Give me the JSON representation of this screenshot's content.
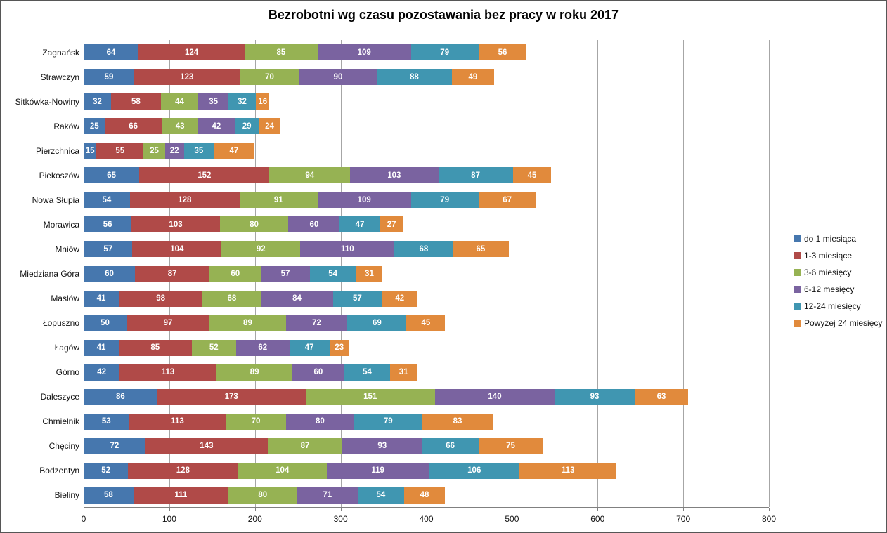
{
  "chart_data": {
    "type": "bar",
    "stacked": true,
    "orientation": "horizontal",
    "title": "Bezrobotni wg czasu pozostawania bez pracy w roku 2017",
    "xlabel": "",
    "ylabel": "",
    "xlim": [
      0,
      800
    ],
    "x_ticks": [
      0,
      100,
      200,
      300,
      400,
      500,
      600,
      700,
      800
    ],
    "grid": true,
    "legend_position": "right",
    "value_labels": "inside-white",
    "categories": [
      "Zagnańsk",
      "Strawczyn",
      "Sitkówka-Nowiny",
      "Raków",
      "Pierzchnica",
      "Piekoszów",
      "Nowa Słupia",
      "Morawica",
      "Mniów",
      "Miedziana Góra",
      "Masłów",
      "Łopuszno",
      "Łagów",
      "Górno",
      "Daleszyce",
      "Chmielnik",
      "Chęciny",
      "Bodzentyn",
      "Bieliny"
    ],
    "series": [
      {
        "name": "do 1 miesiąca",
        "color": "#4677AE",
        "values": [
          64,
          59,
          32,
          25,
          15,
          65,
          54,
          56,
          57,
          60,
          41,
          50,
          41,
          42,
          86,
          53,
          72,
          52,
          58
        ]
      },
      {
        "name": "1-3 miesiące",
        "color": "#B04A48",
        "values": [
          124,
          123,
          58,
          66,
          55,
          152,
          128,
          103,
          104,
          87,
          98,
          97,
          85,
          113,
          173,
          113,
          143,
          128,
          111
        ]
      },
      {
        "name": "3-6 miesięcy",
        "color": "#96B253",
        "values": [
          85,
          70,
          44,
          43,
          25,
          94,
          91,
          80,
          92,
          60,
          68,
          89,
          52,
          89,
          151,
          70,
          87,
          104,
          80
        ]
      },
      {
        "name": "6-12 mesięcy",
        "color": "#7A63A0",
        "values": [
          109,
          90,
          35,
          42,
          22,
          103,
          109,
          60,
          110,
          57,
          84,
          72,
          62,
          60,
          140,
          80,
          93,
          119,
          71
        ]
      },
      {
        "name": "12-24 miesięcy",
        "color": "#4096B1",
        "values": [
          79,
          88,
          32,
          29,
          35,
          87,
          79,
          47,
          68,
          54,
          57,
          69,
          47,
          54,
          93,
          79,
          66,
          106,
          54
        ]
      },
      {
        "name": "Powyżej 24 miesięcy",
        "color": "#E18A3C",
        "values": [
          56,
          49,
          16,
          24,
          47,
          45,
          67,
          27,
          65,
          31,
          42,
          45,
          23,
          31,
          63,
          83,
          75,
          113,
          48
        ]
      }
    ],
    "style": {
      "gridline_color": "#a6a6a6",
      "axis_color": "#808080",
      "background": "#ffffff",
      "bar_value_color": "#ffffff"
    }
  }
}
